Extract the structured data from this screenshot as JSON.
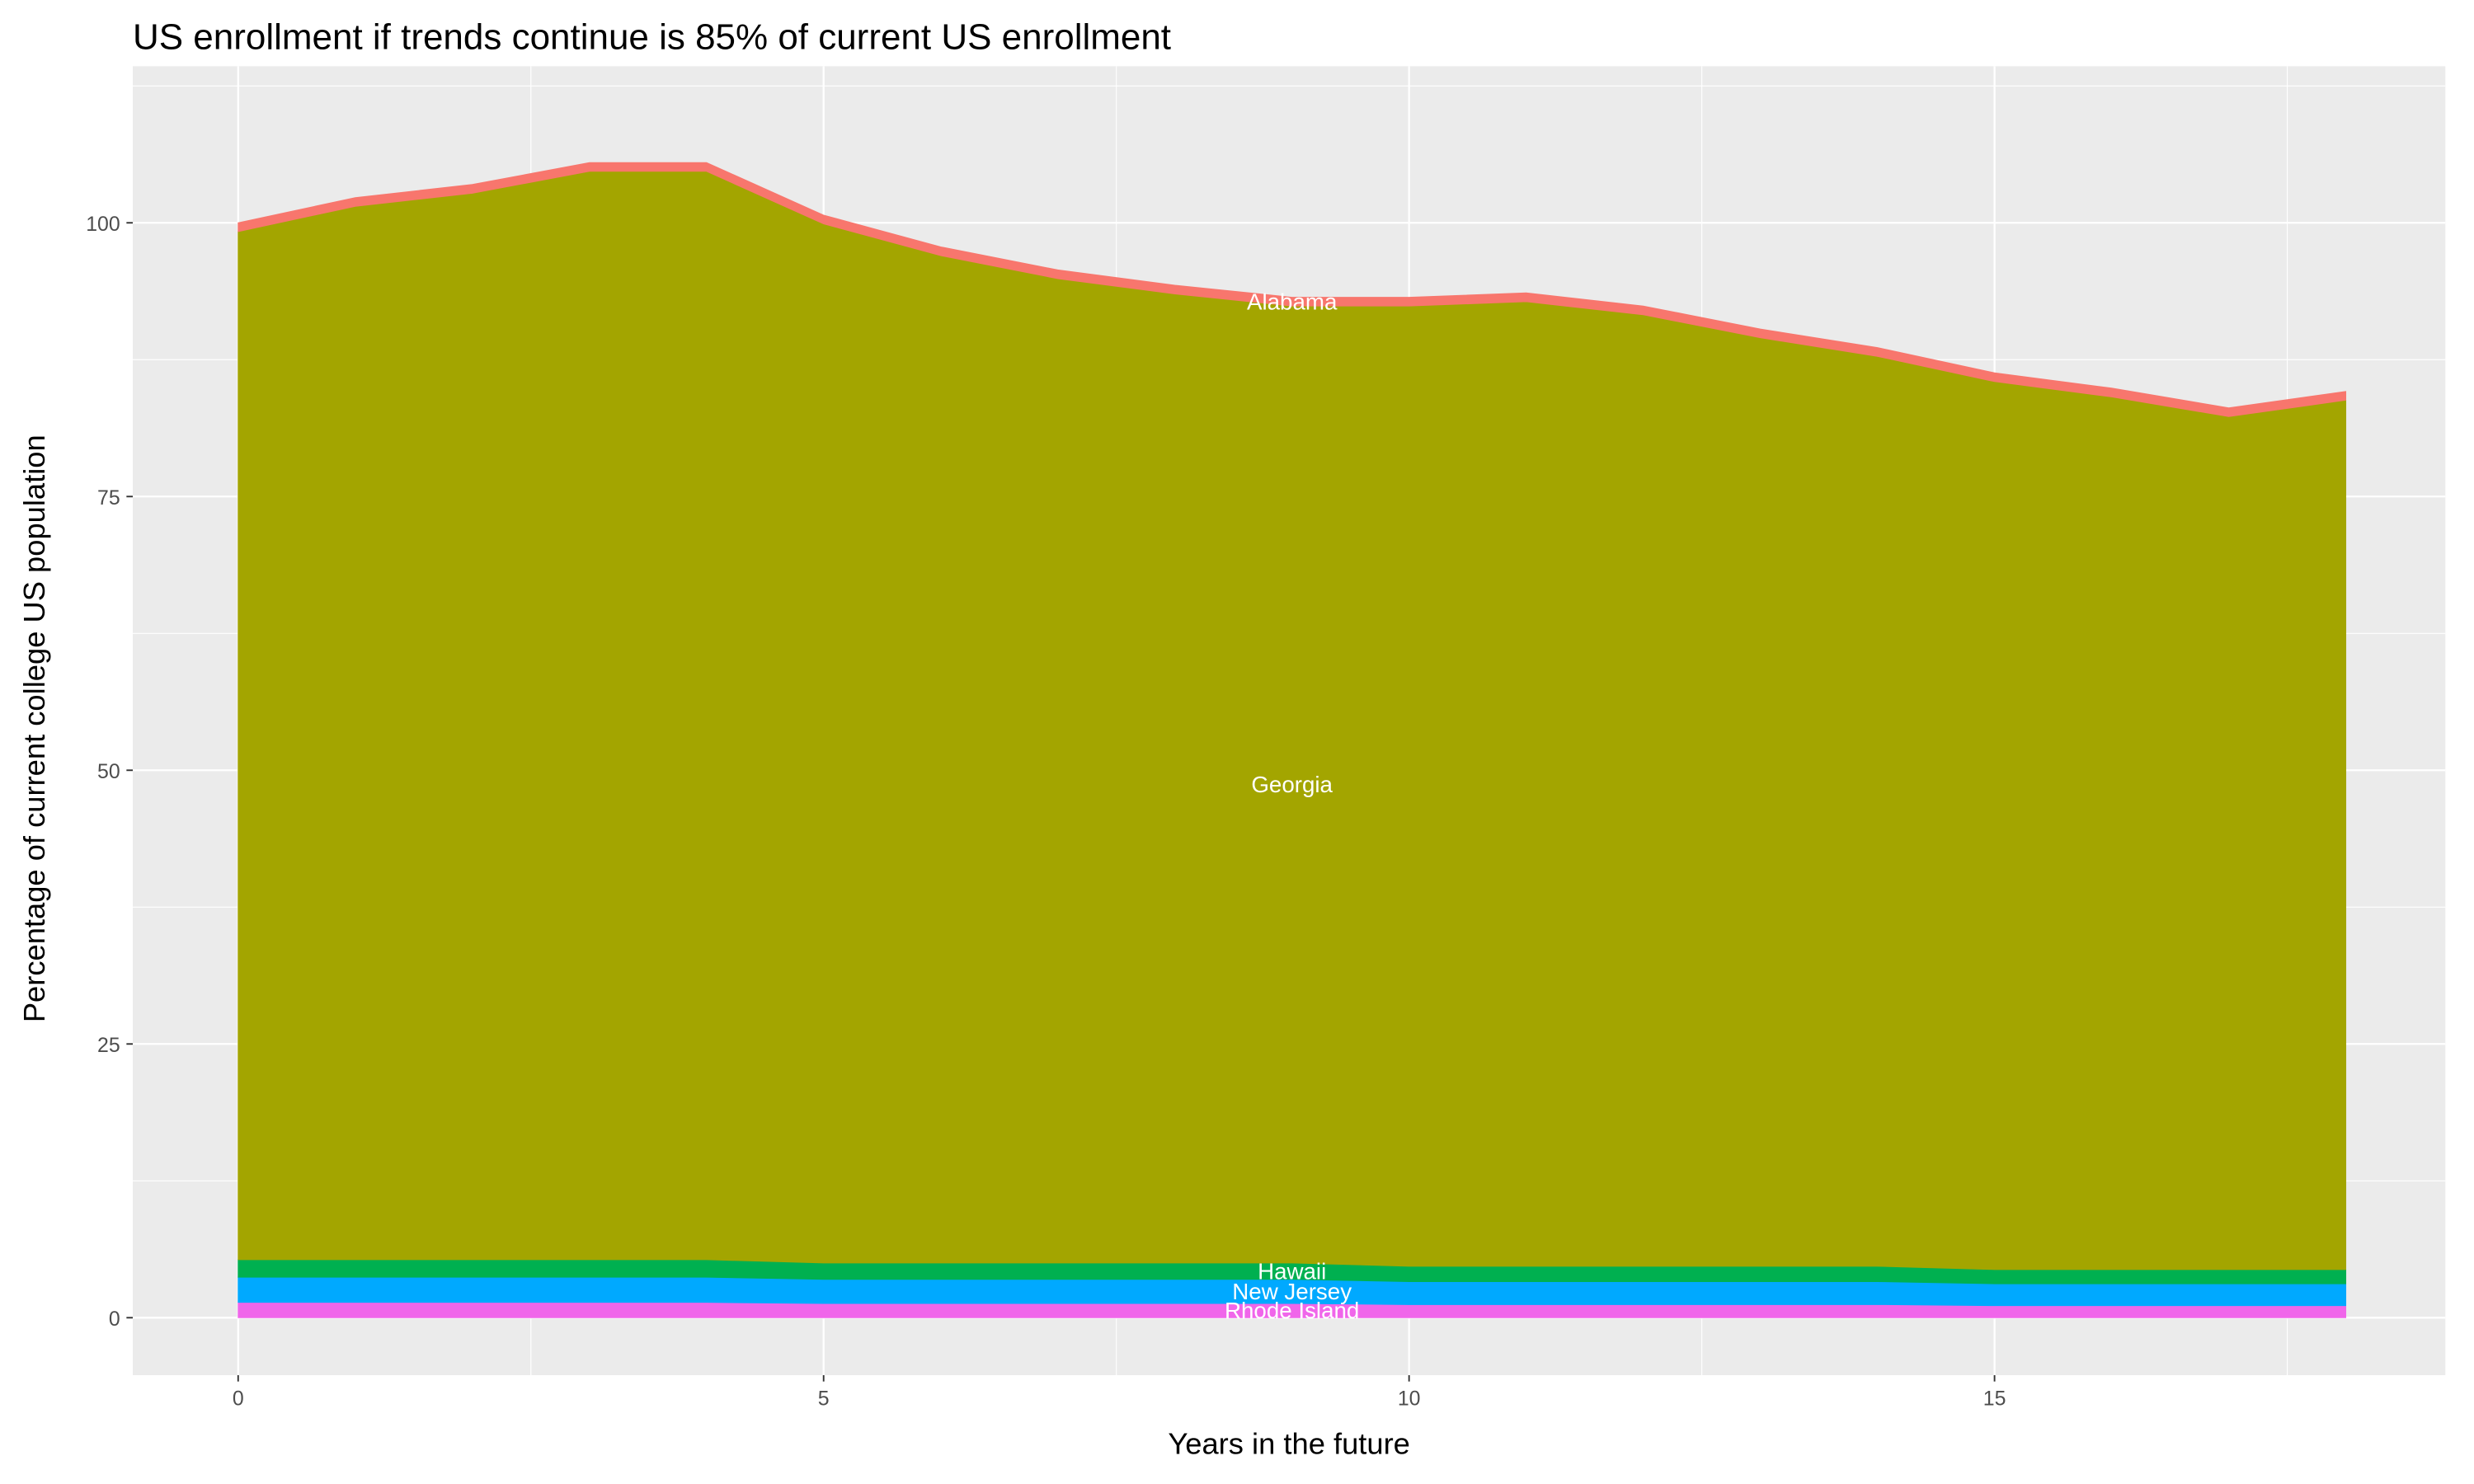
{
  "chart_data": {
    "type": "area",
    "title": "US enrollment if trends continue is 85% of current US enrollment",
    "x_label": "Years in the future",
    "y_label": "Percentage of current college US population",
    "x": [
      0,
      1,
      2,
      3,
      4,
      5,
      6,
      7,
      8,
      9,
      10,
      11,
      12,
      13,
      14,
      15,
      16,
      17,
      18
    ],
    "series": [
      {
        "name": "Rhode Island",
        "color": "#F066EA",
        "values": [
          1.4,
          1.4,
          1.4,
          1.4,
          1.4,
          1.3,
          1.3,
          1.3,
          1.3,
          1.3,
          1.2,
          1.2,
          1.2,
          1.2,
          1.2,
          1.1,
          1.1,
          1.1,
          1.1
        ]
      },
      {
        "name": "New Jersey",
        "color": "#00A9FF",
        "values": [
          2.3,
          2.3,
          2.3,
          2.3,
          2.3,
          2.2,
          2.2,
          2.2,
          2.2,
          2.2,
          2.1,
          2.1,
          2.1,
          2.1,
          2.1,
          2.0,
          2.0,
          2.0,
          2.0
        ]
      },
      {
        "name": "Hawaii",
        "color": "#00B050",
        "values": [
          1.6,
          1.6,
          1.6,
          1.6,
          1.6,
          1.5,
          1.5,
          1.5,
          1.5,
          1.5,
          1.4,
          1.4,
          1.4,
          1.4,
          1.4,
          1.3,
          1.3,
          1.3,
          1.3
        ]
      },
      {
        "name": "Georgia",
        "color": "#A3A500",
        "values": [
          93.9,
          96.2,
          97.4,
          99.4,
          99.4,
          94.9,
          92.0,
          89.9,
          88.5,
          87.4,
          87.7,
          88.1,
          86.9,
          84.8,
          83.1,
          81.1,
          79.7,
          77.9,
          79.4
        ]
      },
      {
        "name": "Alabama",
        "color": "#F8766D",
        "values": [
          0.8,
          0.8,
          0.8,
          0.8,
          0.8,
          0.8,
          0.8,
          0.8,
          0.8,
          0.8,
          0.8,
          0.8,
          0.8,
          0.8,
          0.8,
          0.8,
          0.8,
          0.8,
          0.8
        ]
      }
    ],
    "xlim": [
      -0.9,
      18.85
    ],
    "ylim": [
      -5.25,
      114.3
    ],
    "xticks": [
      0,
      5,
      10,
      15
    ],
    "yticks": [
      0,
      25,
      50,
      75,
      100
    ],
    "grid": true
  }
}
